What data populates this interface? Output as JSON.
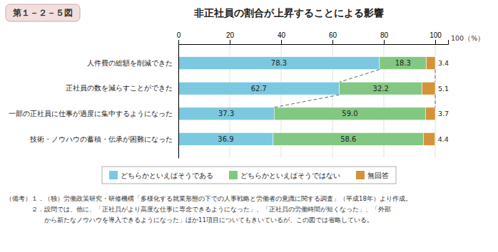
{
  "chart_data": {
    "type": "bar",
    "orientation": "horizontal",
    "stacked": true,
    "title": "非正社員の割合が上昇することによる影響",
    "annotations": [
      "第１－２－５図",
      "100（%）",
      "（備考）１．（独）労働政策研究・研修機構「多様化する就業形態の下での人事戦略と労働者の意識に関する調査」（平成18年）より作成。",
      "　　　　２．設問では、他に、「正社員がより高度な仕事に専念できるようになった」、「正社員の労働時間が短くなった」、「外部",
      "　　　　　　から新たなノウハウを導入できるようになった」ほか11項目についてもきいているが、この図では省略している。"
    ],
    "categories": [
      "人件費の総額を削減できた",
      "正社員の数を減らすことができた",
      "一部の正社員に仕事が過度に集中するようになった",
      "技術・ノウハウの蓄積・伝承が困難になった"
    ],
    "series": [
      {
        "name": "どちらかといえばそうである",
        "color": "#7AC9E0",
        "values": [
          78.3,
          62.7,
          37.3,
          36.9
        ]
      },
      {
        "name": "どちらかといえばそうではない",
        "color": "#82C882",
        "values": [
          18.3,
          32.2,
          59.0,
          58.6
        ],
        "value_labels": [
          "18.3",
          "32.2",
          "59.0",
          "58.6"
        ]
      },
      {
        "name": "無回答",
        "color": "#D4923A",
        "values": [
          3.4,
          5.1,
          3.7,
          4.4
        ]
      }
    ],
    "xlim": [
      0,
      105
    ],
    "xticks": [
      0,
      20,
      40,
      60,
      80,
      100
    ],
    "grid": true,
    "legend": "bottom",
    "data_labels": true
  }
}
